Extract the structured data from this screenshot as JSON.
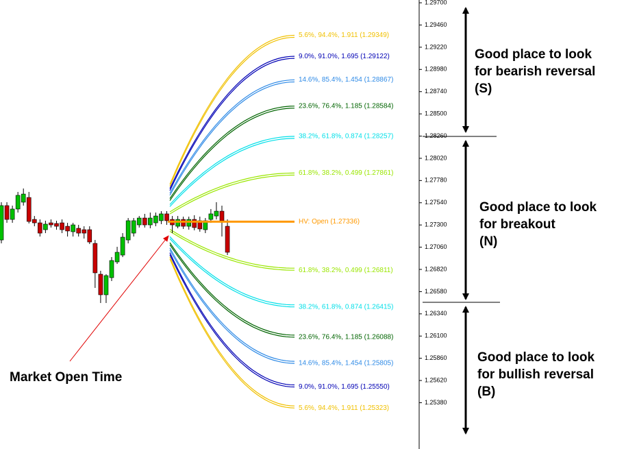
{
  "chart_data": {
    "type": "candlestick",
    "up_color": "#00c000",
    "down_color": "#c80000",
    "ylim": [
      1.2488,
      1.2973
    ],
    "yticks": [
      {
        "value": 1.297,
        "label": "1.29700"
      },
      {
        "value": 1.2946,
        "label": "1.29460"
      },
      {
        "value": 1.2922,
        "label": "1.29220"
      },
      {
        "value": 1.2898,
        "label": "1.28980"
      },
      {
        "value": 1.2874,
        "label": "1.28740"
      },
      {
        "value": 1.285,
        "label": "1.28500"
      },
      {
        "value": 1.2826,
        "label": "1.28260"
      },
      {
        "value": 1.2802,
        "label": "1.28020"
      },
      {
        "value": 1.2778,
        "label": "1.27780"
      },
      {
        "value": 1.2754,
        "label": "1.27540"
      },
      {
        "value": 1.273,
        "label": "1.27300"
      },
      {
        "value": 1.2706,
        "label": "1.27060"
      },
      {
        "value": 1.2682,
        "label": "1.26820"
      },
      {
        "value": 1.2658,
        "label": "1.26580"
      },
      {
        "value": 1.2634,
        "label": "1.26340"
      },
      {
        "value": 1.261,
        "label": "1.26100"
      },
      {
        "value": 1.2586,
        "label": "1.25860"
      },
      {
        "value": 1.2562,
        "label": "1.25620"
      },
      {
        "value": 1.2538,
        "label": "1.25380"
      }
    ],
    "open": [
      1.27138,
      1.27509,
      1.2736,
      1.27472,
      1.27546,
      1.27597,
      1.2736,
      1.27323,
      1.27249,
      1.27323,
      1.27316,
      1.27323,
      1.27286,
      1.27227,
      1.27264,
      1.27249,
      1.27249,
      1.27101,
      1.26768,
      1.26546,
      1.26731,
      1.26901,
      1.26975,
      1.27138,
      1.27212,
      1.27301,
      1.27375,
      1.27301,
      1.27323,
      1.27346,
      1.2742,
      1.2736,
      1.27286,
      1.2736,
      1.27286,
      1.2736,
      1.27346,
      1.27249,
      1.2736,
      1.27397,
      1.27449,
      1.27286
    ],
    "high": [
      1.27546,
      1.27546,
      1.27509,
      1.27657,
      1.27694,
      1.27657,
      1.27397,
      1.2736,
      1.27346,
      1.2736,
      1.27346,
      1.2736,
      1.27323,
      1.27323,
      1.27301,
      1.27286,
      1.27286,
      1.27138,
      1.26805,
      1.26768,
      1.26953,
      1.27064,
      1.27212,
      1.27375,
      1.27375,
      1.27397,
      1.2742,
      1.27434,
      1.27434,
      1.27449,
      1.27449,
      1.27397,
      1.27397,
      1.2739,
      1.2739,
      1.27405,
      1.2739,
      1.27375,
      1.27472,
      1.27546,
      1.27509,
      1.2736
    ],
    "low": [
      1.27101,
      1.27323,
      1.27323,
      1.27434,
      1.27509,
      1.27316,
      1.27286,
      1.27175,
      1.27212,
      1.27272,
      1.27249,
      1.27212,
      1.27175,
      1.27175,
      1.27175,
      1.27153,
      1.27094,
      1.2662,
      1.26457,
      1.26457,
      1.26694,
      1.26879,
      1.26953,
      1.27101,
      1.27175,
      1.27272,
      1.27272,
      1.27264,
      1.27286,
      1.27309,
      1.27301,
      1.27212,
      1.27264,
      1.27257,
      1.27249,
      1.27242,
      1.27227,
      1.27212,
      1.27323,
      1.2736,
      1.27175,
      1.26975
    ],
    "close": [
      1.27509,
      1.2736,
      1.27472,
      1.2762,
      1.27634,
      1.27338,
      1.27323,
      1.27212,
      1.27309,
      1.27301,
      1.27286,
      1.27249,
      1.27235,
      1.27301,
      1.27212,
      1.27212,
      1.27116,
      1.26783,
      1.26546,
      1.26753,
      1.26916,
      1.27005,
      1.27168,
      1.27346,
      1.27346,
      1.27375,
      1.27301,
      1.27375,
      1.27397,
      1.2742,
      1.27346,
      1.27301,
      1.2736,
      1.27286,
      1.2736,
      1.27272,
      1.27257,
      1.27346,
      1.2742,
      1.27449,
      1.27346,
      1.27005
    ],
    "open_level": {
      "label": "HV: Open (1.27336)",
      "value": 1.27336,
      "color": "#ff9900"
    },
    "levels": [
      {
        "label": "5.6%, 94.4%, 1.911 (1.29349)",
        "value": 1.29349,
        "color": "#f0c000"
      },
      {
        "label": "9.0%, 91.0%, 1.695 (1.29122)",
        "value": 1.29122,
        "color": "#0000b4"
      },
      {
        "label": "14.6%, 85.4%, 1.454 (1.28867)",
        "value": 1.28867,
        "color": "#2e8ae6"
      },
      {
        "label": "23.6%, 76.4%, 1.185 (1.28584)",
        "value": 1.28584,
        "color": "#006400"
      },
      {
        "label": "38.2%, 61.8%, 0.874 (1.28257)",
        "value": 1.28257,
        "color": "#00dfe8"
      },
      {
        "label": "61.8%, 38.2%, 0.499 (1.27861)",
        "value": 1.27861,
        "color": "#9ae600"
      },
      {
        "label": "61.8%, 38.2%, 0.499 (1.26811)",
        "value": 1.26811,
        "color": "#9ae600"
      },
      {
        "label": "38.2%, 61.8%, 0.874 (1.26415)",
        "value": 1.26415,
        "color": "#00dfe8"
      },
      {
        "label": "23.6%, 76.4%, 1.185 (1.26088)",
        "value": 1.26088,
        "color": "#006400"
      },
      {
        "label": "14.6%, 85.4%, 1.454 (1.25805)",
        "value": 1.25805,
        "color": "#2e8ae6"
      },
      {
        "label": "9.0%, 91.0%, 1.695 (1.25550)",
        "value": 1.2555,
        "color": "#0000b4"
      },
      {
        "label": "5.6%, 94.4%, 1.911 (1.25323)",
        "value": 1.25323,
        "color": "#f0c000"
      }
    ],
    "market_open_label": "Market Open Time",
    "zones": [
      {
        "lines": [
          "Good place to look",
          "for bearish reversal",
          "(S)"
        ]
      },
      {
        "lines": [
          "Good place to look",
          "for breakout",
          "(N)"
        ]
      },
      {
        "lines": [
          "Good place to look",
          "for bullish reversal",
          "(B)"
        ]
      }
    ]
  }
}
